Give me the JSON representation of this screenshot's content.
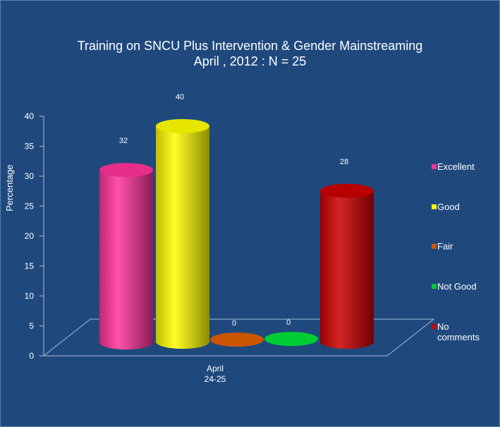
{
  "chart_data": {
    "type": "bar",
    "title": "Training on SNCU Plus Intervention & Gender Mainstreaming",
    "subtitle": "April , 2012 : N = 25",
    "xlabel": "",
    "ylabel": "Percentage",
    "categories": [
      "April 24-25"
    ],
    "category_lines": [
      "April",
      "24-25"
    ],
    "ylim": [
      0,
      40
    ],
    "yticks": [
      0,
      5,
      10,
      15,
      20,
      25,
      30,
      35,
      40
    ],
    "series": [
      {
        "name": "Excellent",
        "values": [
          32
        ],
        "color": "#ff3399"
      },
      {
        "name": "Good",
        "values": [
          40
        ],
        "color": "#ffff00"
      },
      {
        "name": "Fair",
        "values": [
          0
        ],
        "color": "#cc5500"
      },
      {
        "name": "Not Good",
        "values": [
          0
        ],
        "color": "#00cc33"
      },
      {
        "name": "No comments",
        "values": [
          28
        ],
        "color": "#cc0000"
      }
    ],
    "legend_position": "right",
    "grid": false,
    "style": "3d-cylinder"
  },
  "colors": {
    "background": "#1f497d",
    "text": "#ffffff"
  }
}
